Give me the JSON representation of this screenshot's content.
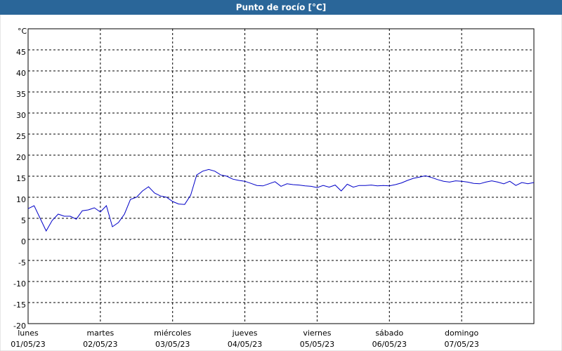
{
  "chart_data": {
    "type": "line",
    "title": "Punto de rocío [°C]",
    "x_labels": [
      {
        "day": "lunes",
        "date": "01/05/23"
      },
      {
        "day": "martes",
        "date": "02/05/23"
      },
      {
        "day": "miércoles",
        "date": "03/05/23"
      },
      {
        "day": "jueves",
        "date": "04/05/23"
      },
      {
        "day": "viernes",
        "date": "05/05/23"
      },
      {
        "day": "sábado",
        "date": "06/05/23"
      },
      {
        "day": "domingo",
        "date": "07/05/23"
      }
    ],
    "series": [
      {
        "color": "#0000c8",
        "values": [
          7.3,
          8,
          5,
          2,
          4.5,
          6,
          5.5,
          5.5,
          4.8,
          6.8,
          7,
          7.5,
          6.5,
          8,
          3,
          4,
          6,
          9.5,
          10,
          11.5,
          12.5,
          11,
          10.3,
          10,
          9,
          8.4,
          8.3,
          10.5,
          15.3,
          16.2,
          16.6,
          16.2,
          15.3,
          15,
          14.3,
          14,
          13.8,
          13.3,
          12.8,
          12.7,
          13.2,
          13.7,
          12.6,
          13.2,
          13,
          12.9,
          12.7,
          12.6,
          12.3,
          12.8,
          12.4,
          12.9,
          11.5,
          13.1,
          12.4,
          12.8,
          12.8,
          12.9,
          12.7,
          12.8,
          12.7,
          13,
          13.4,
          14,
          14.5,
          14.8,
          15.1,
          14.7,
          14.2,
          13.8,
          13.6,
          13.9,
          13.8,
          13.6,
          13.3,
          13.2,
          13.6,
          13.9,
          13.6,
          13.2,
          13.8,
          12.8,
          13.5,
          13.2,
          13.5
        ]
      }
    ],
    "ylim": [
      -20,
      50
    ],
    "yticks": [
      -20,
      -15,
      -10,
      -5,
      0,
      5,
      10,
      15,
      20,
      25,
      30,
      35,
      40,
      45,
      {
        "value": 50,
        "label": "°C"
      }
    ],
    "grid": true
  }
}
